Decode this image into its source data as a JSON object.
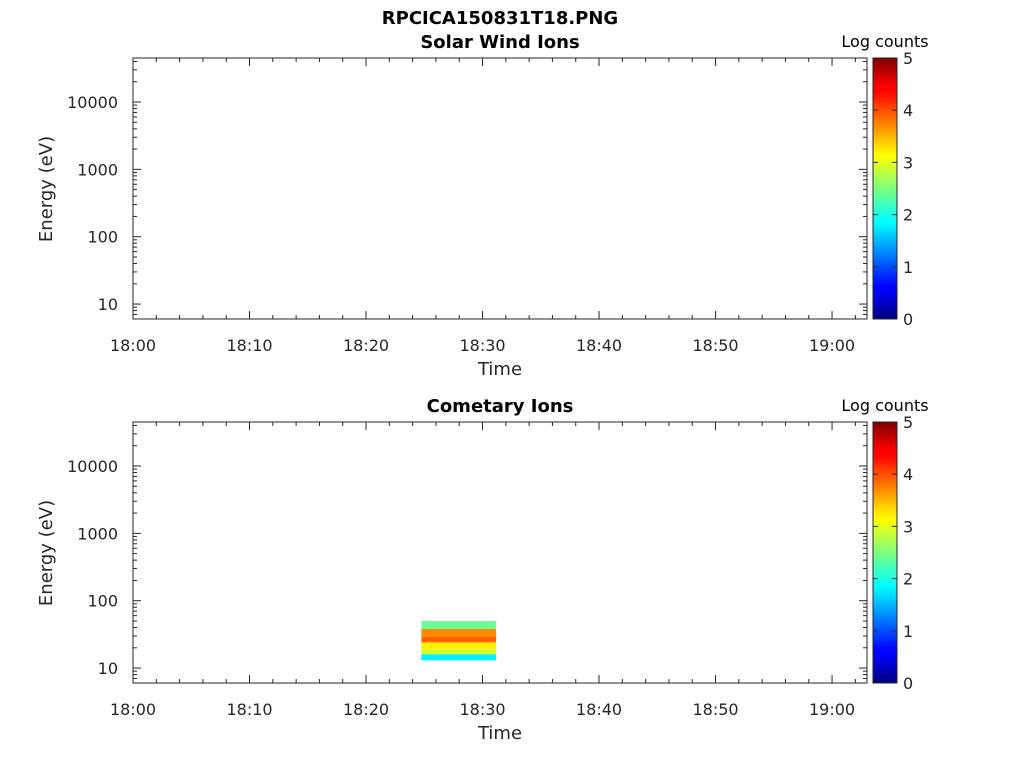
{
  "figure_title": "RPCICA150831T18.PNG",
  "chart_data": [
    {
      "type": "heatmap",
      "title": "Solar Wind Ions",
      "xlabel": "Time",
      "ylabel": "Energy (eV)",
      "x_ticks": [
        "18:00",
        "18:10",
        "18:20",
        "18:30",
        "18:40",
        "18:50",
        "19:00"
      ],
      "xlim": [
        "18:00",
        "19:03"
      ],
      "y_ticks": [
        "10",
        "100",
        "1000",
        "10000"
      ],
      "y_scale": "log",
      "ylim": [
        6,
        45000
      ],
      "colorbar": {
        "label": "Log counts",
        "ticks": [
          "0",
          "1",
          "2",
          "3",
          "4",
          "5"
        ],
        "range": [
          0,
          5
        ],
        "colormap": "jet"
      },
      "data": [],
      "grid": false
    },
    {
      "type": "heatmap",
      "title": "Cometary Ions",
      "xlabel": "Time",
      "ylabel": "Energy (eV)",
      "x_ticks": [
        "18:00",
        "18:10",
        "18:20",
        "18:30",
        "18:40",
        "18:50",
        "19:00"
      ],
      "xlim": [
        "18:00",
        "19:03"
      ],
      "y_ticks": [
        "10",
        "100",
        "1000",
        "10000"
      ],
      "y_scale": "log",
      "ylim": [
        6,
        45000
      ],
      "colorbar": {
        "label": "Log counts",
        "ticks": [
          "0",
          "1",
          "2",
          "3",
          "4",
          "5"
        ],
        "range": [
          0,
          5
        ],
        "colormap": "jet"
      },
      "data": [
        {
          "time_range": [
            "18:24:45",
            "18:31:10"
          ],
          "energy_range_eV": [
            38,
            50
          ],
          "log_counts": 2.4
        },
        {
          "time_range": [
            "18:24:45",
            "18:31:10"
          ],
          "energy_range_eV": [
            29,
            38
          ],
          "log_counts": 3.7
        },
        {
          "time_range": [
            "18:24:45",
            "18:31:10"
          ],
          "energy_range_eV": [
            24,
            29
          ],
          "log_counts": 3.9
        },
        {
          "time_range": [
            "18:24:45",
            "18:31:10"
          ],
          "energy_range_eV": [
            19,
            24
          ],
          "log_counts": 3.2
        },
        {
          "time_range": [
            "18:24:45",
            "18:31:10"
          ],
          "energy_range_eV": [
            16,
            19
          ],
          "log_counts": 2.9
        },
        {
          "time_range": [
            "18:24:45",
            "18:31:10"
          ],
          "energy_range_eV": [
            13,
            16
          ],
          "log_counts": 1.8
        }
      ],
      "grid": false
    }
  ]
}
